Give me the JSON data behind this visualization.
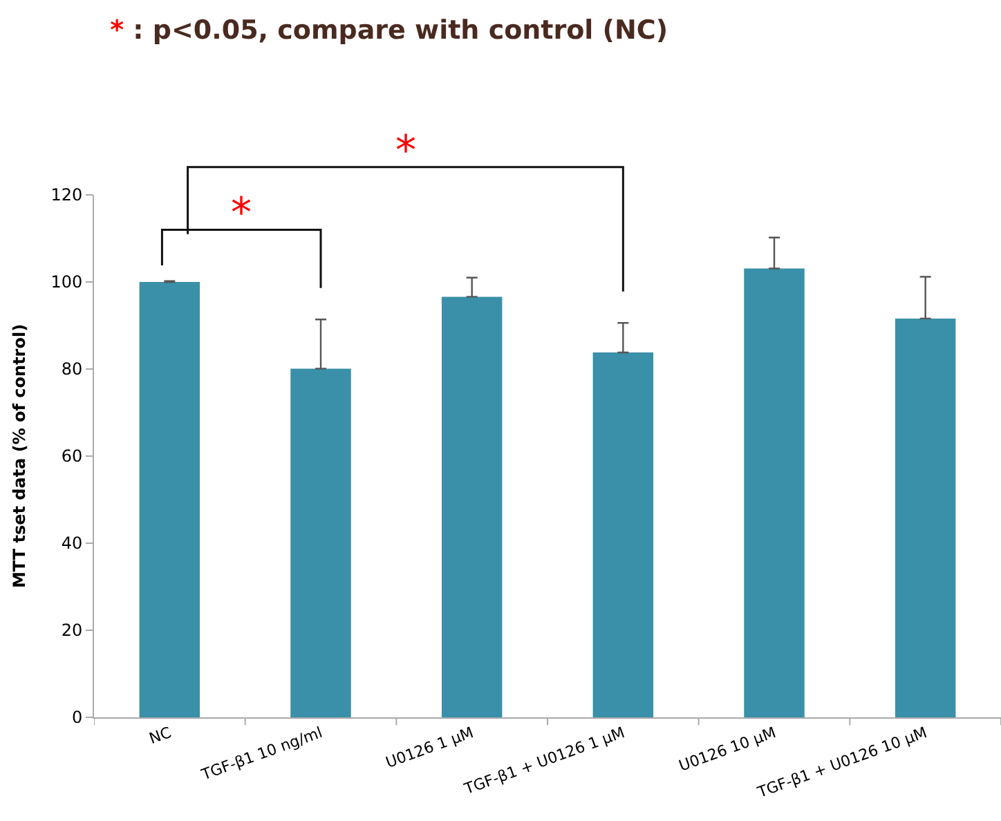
{
  "chart_data": {
    "type": "bar",
    "title": "* : p<0.05, compare with control (NC)",
    "ylabel": "MTT tset data (% of control)",
    "categories": [
      "NC",
      "TGF-β1 10 ng/ml",
      "U0126 1 µM",
      "TGF-β1 + U0126 1 µM",
      "U0126 10 µM",
      "TGF-β1 + U0126 10 µM"
    ],
    "values": [
      100,
      80.1,
      96.6,
      83.8,
      103.1,
      91.6
    ],
    "errors": [
      [
        100,
        100.2
      ],
      [
        80.1,
        91.4
      ],
      [
        96.6,
        101.0
      ],
      [
        83.8,
        90.6
      ],
      [
        103.1,
        110.2
      ],
      [
        91.6,
        101.2
      ]
    ],
    "color": "#3a90a8",
    "ylim": [
      0,
      120
    ],
    "yticks": [
      0,
      20,
      40,
      60,
      80,
      100,
      120
    ],
    "annotations": [
      "*",
      "*"
    ]
  }
}
